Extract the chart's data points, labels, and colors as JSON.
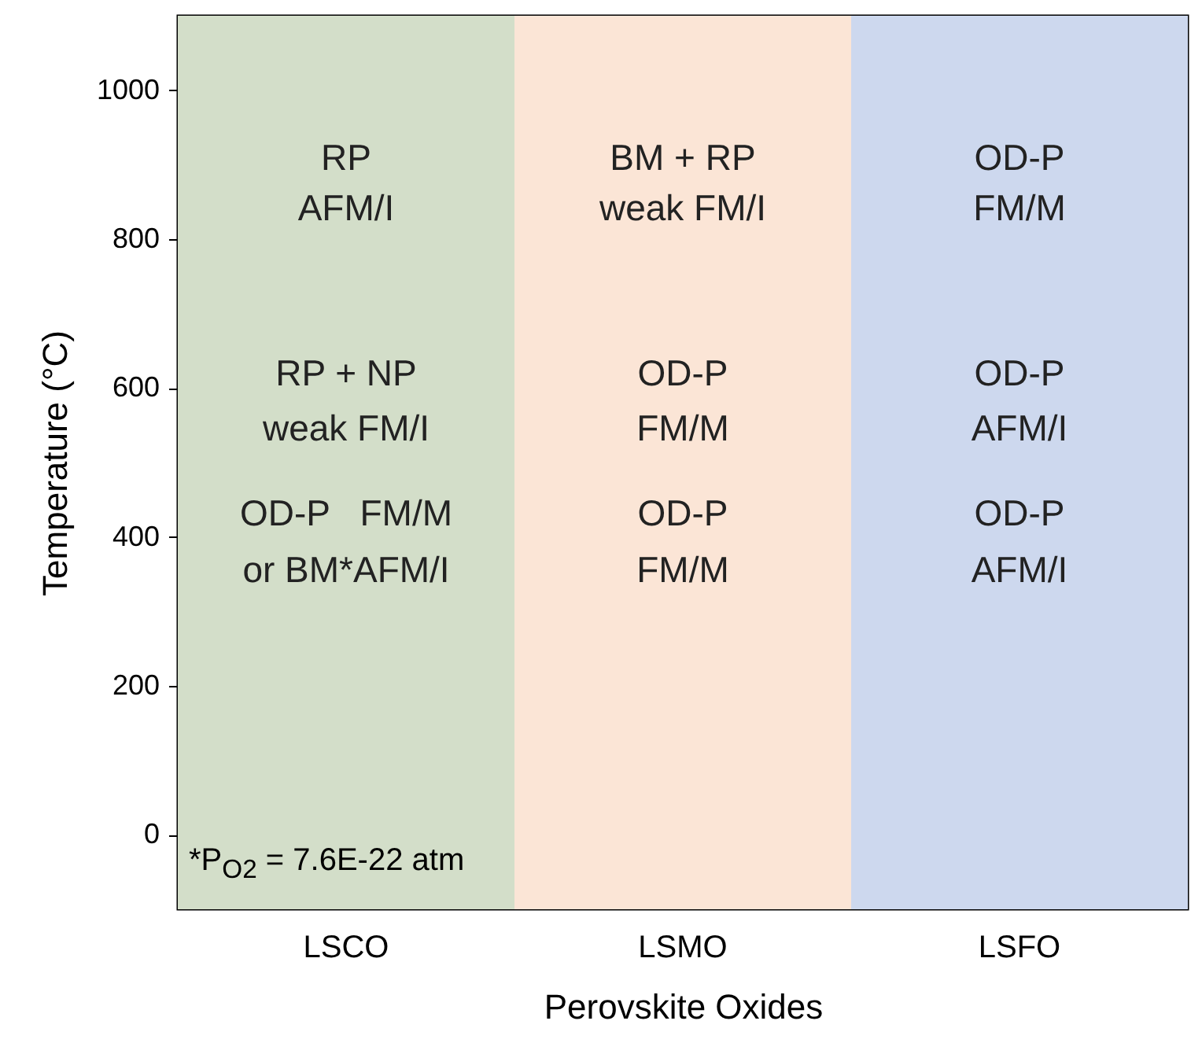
{
  "chart_data": {
    "type": "scatter",
    "xlabel": "Perovskite Oxides",
    "ylabel": "Temperature (°C)",
    "categories": [
      "LSCO",
      "LSMO",
      "LSFO"
    ],
    "ylim": [
      -100,
      1100
    ],
    "yticks": [
      0,
      200,
      400,
      600,
      800,
      1000
    ],
    "bands": [
      {
        "axis": "x",
        "from": "LSCO",
        "to": "LSCO",
        "color": "#d3dec9"
      },
      {
        "axis": "x",
        "from": "LSMO",
        "to": "LSMO",
        "color": "#fbe5d6"
      },
      {
        "axis": "x",
        "from": "LSFO",
        "to": "LSFO",
        "color": "#cdd8ee"
      }
    ],
    "annotations": [
      "RP",
      "BM + RP",
      "OD-P",
      "AFM/I",
      "weak FM/I",
      "FM/M",
      "RP + NP",
      "OD-P",
      "OD-P",
      "weak FM/I",
      "FM/M",
      "AFM/I",
      "OD-P   FM/M",
      "OD-P",
      "OD-P",
      "or BM*AFM/I",
      "FM/M",
      "AFM/I",
      "*P$_{O2}$ = 7.6E-22 atm"
    ]
  }
}
